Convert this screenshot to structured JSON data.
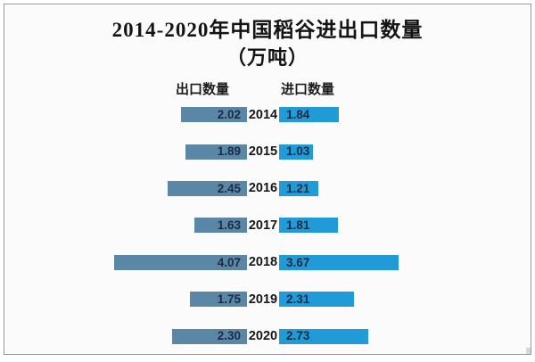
{
  "chart_data": {
    "type": "bar",
    "orientation": "horizontal-diverging",
    "title": "2014-2020年中国稻谷进出口数量",
    "subtitle": "（万吨）",
    "unit": "万吨",
    "categories": [
      "2014",
      "2015",
      "2016",
      "2017",
      "2018",
      "2019",
      "2020"
    ],
    "series": [
      {
        "name": "出口数量",
        "side": "left",
        "color": "#5b87a7",
        "values": [
          2.02,
          1.89,
          2.45,
          1.63,
          4.07,
          1.75,
          2.3
        ],
        "labels": [
          "2.02",
          "1.89",
          "2.45",
          "1.63",
          "4.07",
          "1.75",
          "2.30"
        ]
      },
      {
        "name": "进口数量",
        "side": "right",
        "color": "#209bd8",
        "values": [
          1.84,
          1.03,
          1.21,
          1.81,
          3.67,
          2.31,
          2.73
        ],
        "labels": [
          "1.84",
          "1.03",
          "1.21",
          "1.81",
          "3.67",
          "2.31",
          "2.73"
        ]
      }
    ],
    "value_labels": "inside-bars",
    "legend_position": "top",
    "axes_shown": false,
    "grid": false,
    "xlim": [
      0,
      4.07
    ]
  }
}
